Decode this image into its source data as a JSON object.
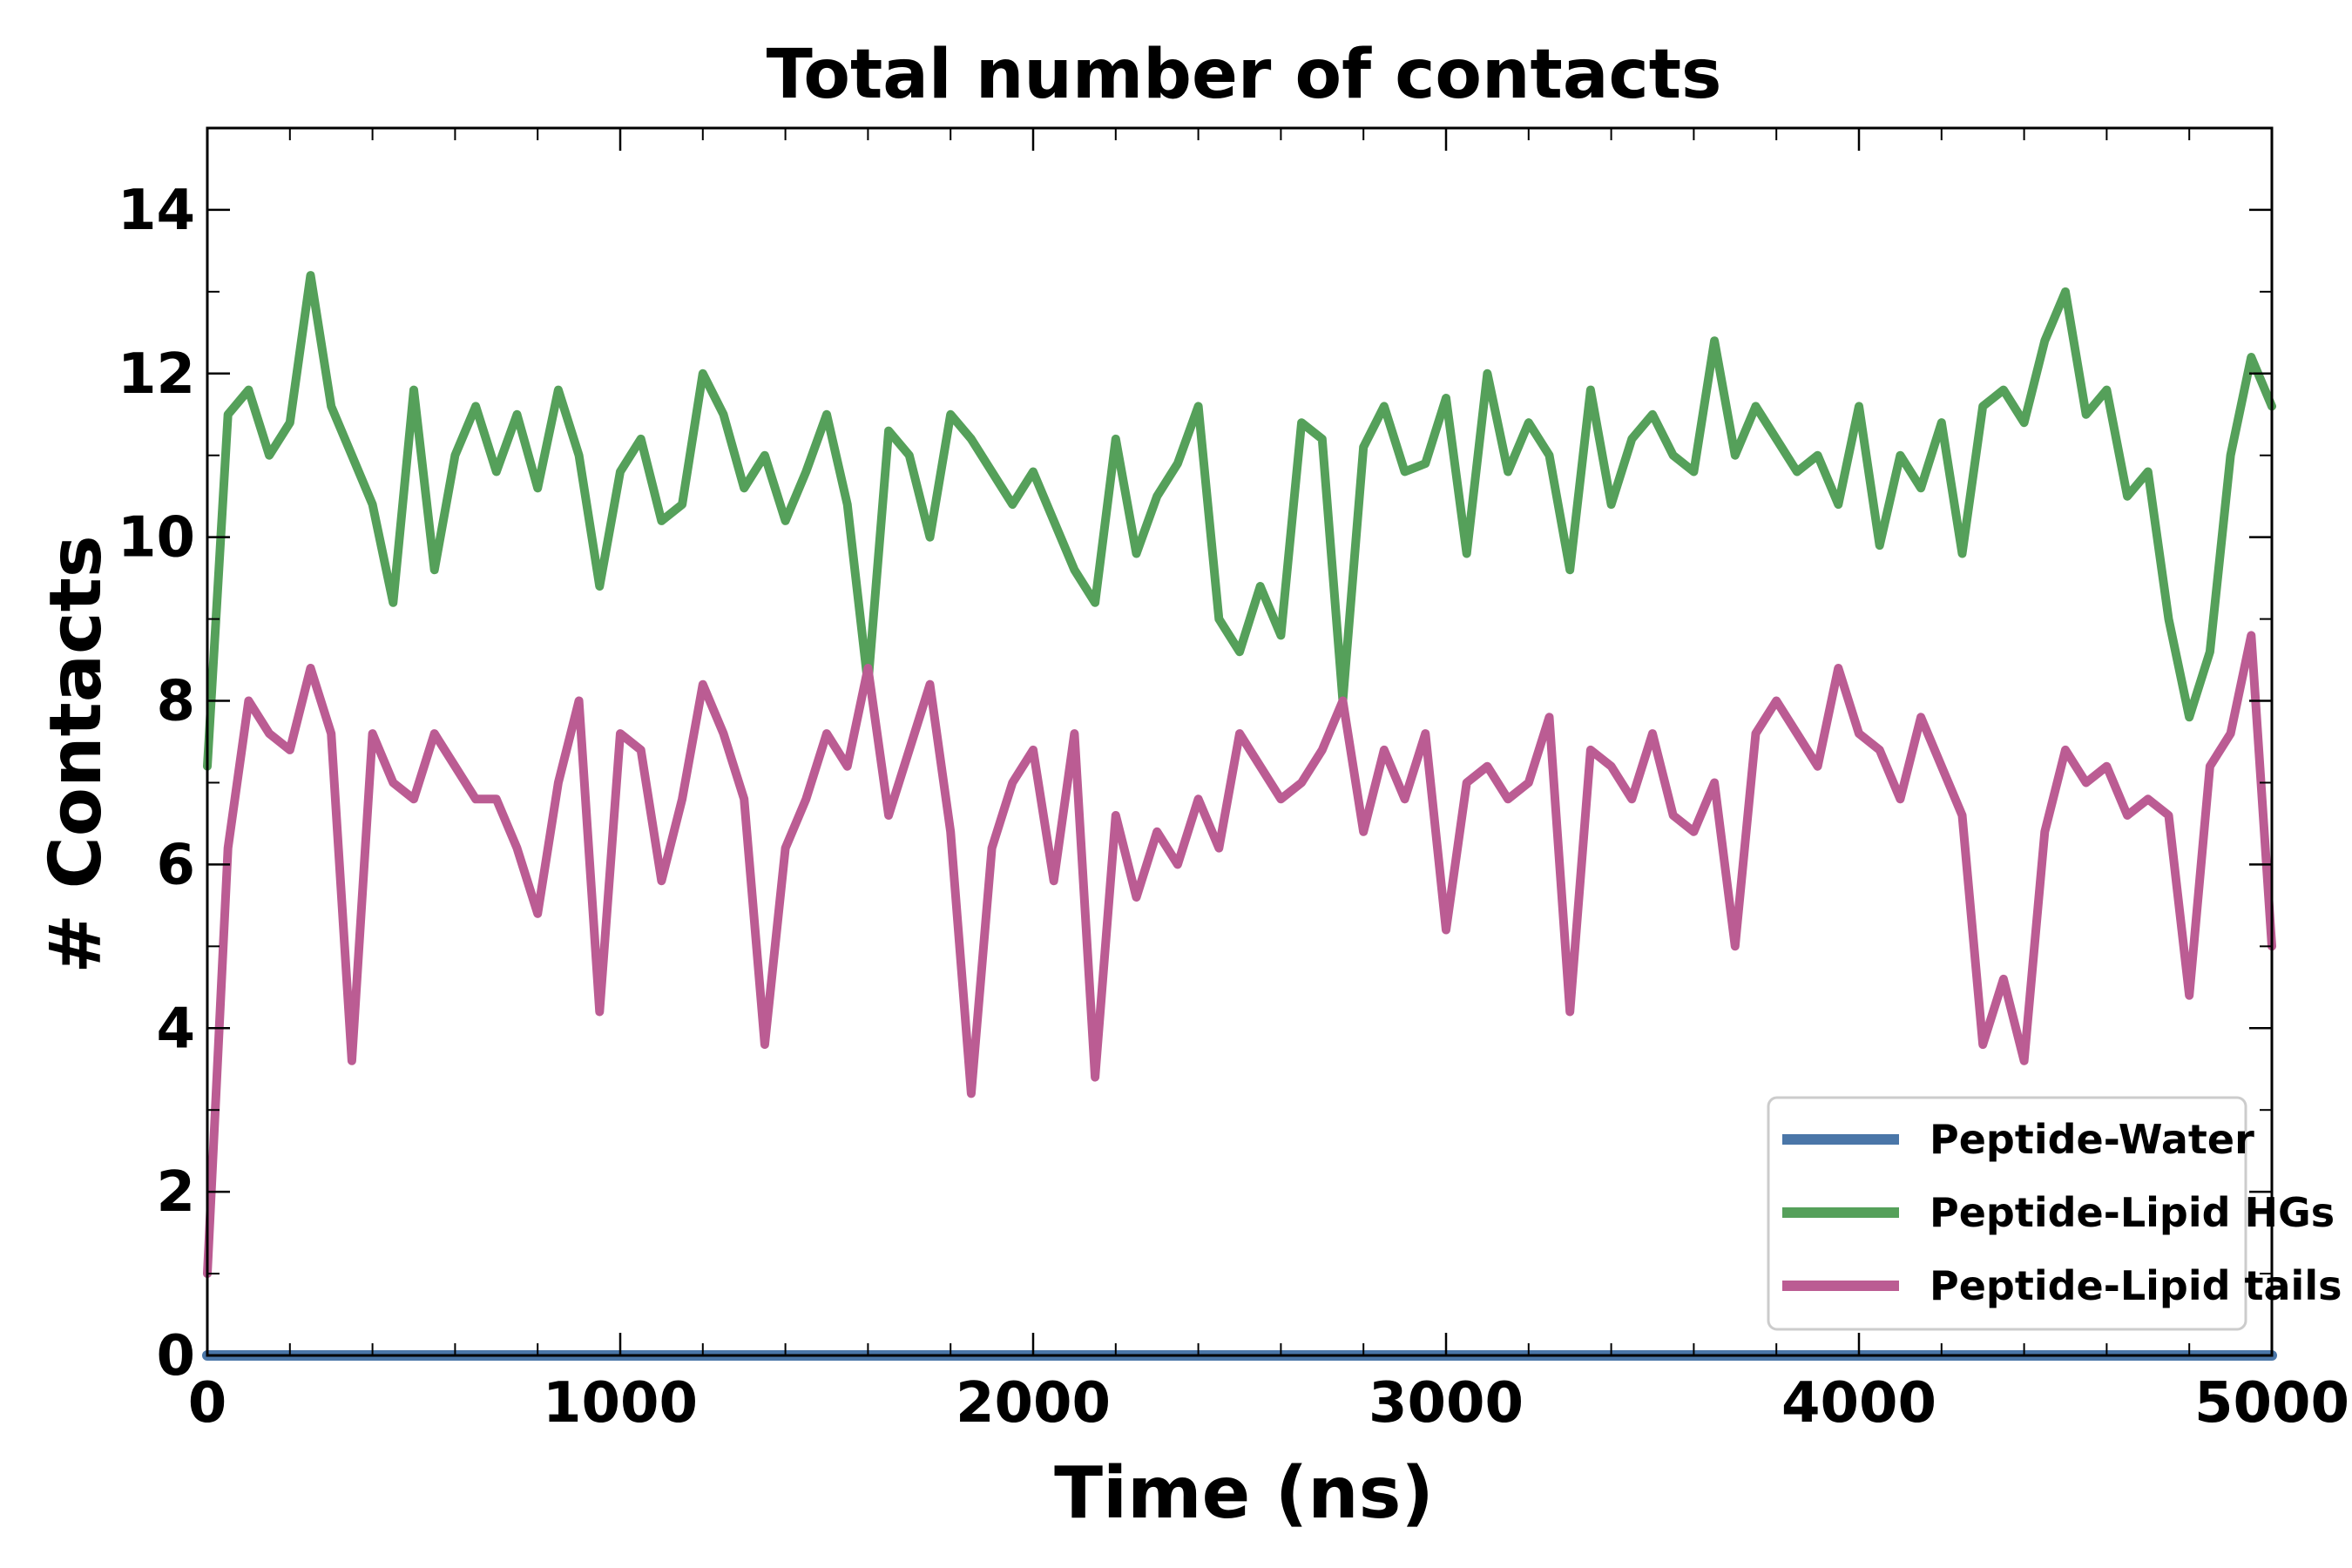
{
  "chart_data": {
    "type": "line",
    "title": "Total number of contacts",
    "xlabel": "Time (ns)",
    "ylabel": "# Contacts",
    "xlim": [
      0,
      5000
    ],
    "ylim": [
      0,
      15
    ],
    "xticks": [
      0,
      1000,
      2000,
      3000,
      4000,
      5000
    ],
    "yticks": [
      0,
      2,
      4,
      6,
      8,
      10,
      12,
      14
    ],
    "xtick_labels": [
      "0",
      "1000",
      "2000",
      "3000",
      "4000",
      "5000"
    ],
    "ytick_labels": [
      "0",
      "2",
      "4",
      "6",
      "8",
      "10",
      "12",
      "14"
    ],
    "grid": false,
    "legend_position": "lower-right",
    "x": [
      0,
      50,
      100,
      150,
      200,
      250,
      300,
      350,
      400,
      450,
      500,
      550,
      600,
      650,
      700,
      750,
      800,
      850,
      900,
      950,
      1000,
      1050,
      1100,
      1150,
      1200,
      1250,
      1300,
      1350,
      1400,
      1450,
      1500,
      1550,
      1600,
      1650,
      1700,
      1750,
      1800,
      1850,
      1900,
      1950,
      2000,
      2050,
      2100,
      2150,
      2200,
      2250,
      2300,
      2350,
      2400,
      2450,
      2500,
      2550,
      2600,
      2650,
      2700,
      2750,
      2800,
      2850,
      2900,
      2950,
      3000,
      3050,
      3100,
      3150,
      3200,
      3250,
      3300,
      3350,
      3400,
      3450,
      3500,
      3550,
      3600,
      3650,
      3700,
      3750,
      3800,
      3850,
      3900,
      3950,
      4000,
      4050,
      4100,
      4150,
      4200,
      4250,
      4300,
      4350,
      4400,
      4450,
      4500,
      4550,
      4600,
      4650,
      4700,
      4750,
      4800,
      4850,
      4900,
      4950,
      5000
    ],
    "series": [
      {
        "name": "Peptide-Water",
        "color": "#4a76a8",
        "values": [
          0,
          0,
          0,
          0,
          0,
          0,
          0,
          0,
          0,
          0,
          0,
          0,
          0,
          0,
          0,
          0,
          0,
          0,
          0,
          0,
          0,
          0,
          0,
          0,
          0,
          0,
          0,
          0,
          0,
          0,
          0,
          0,
          0,
          0,
          0,
          0,
          0,
          0,
          0,
          0,
          0,
          0,
          0,
          0,
          0,
          0,
          0,
          0,
          0,
          0,
          0,
          0,
          0,
          0,
          0,
          0,
          0,
          0,
          0,
          0,
          0,
          0,
          0,
          0,
          0,
          0,
          0,
          0,
          0,
          0,
          0,
          0,
          0,
          0,
          0,
          0,
          0,
          0,
          0,
          0,
          0,
          0,
          0,
          0,
          0,
          0,
          0,
          0,
          0,
          0,
          0,
          0,
          0,
          0,
          0,
          0,
          0,
          0,
          0,
          0,
          0
        ]
      },
      {
        "name": "Peptide-Lipid HGs",
        "color": "#55a05a",
        "values": [
          7.2,
          11.5,
          11.8,
          11.0,
          11.4,
          13.2,
          11.6,
          11.0,
          10.4,
          9.2,
          11.8,
          9.6,
          11.0,
          11.6,
          10.8,
          11.5,
          10.6,
          11.8,
          11.0,
          9.4,
          10.8,
          11.2,
          10.2,
          10.4,
          12.0,
          11.5,
          10.6,
          11.0,
          10.2,
          10.8,
          11.5,
          10.4,
          8.2,
          11.3,
          11.0,
          10.0,
          11.5,
          11.2,
          10.8,
          10.4,
          10.8,
          10.2,
          9.6,
          9.2,
          11.2,
          9.8,
          10.5,
          10.9,
          11.6,
          9.0,
          8.6,
          9.4,
          8.8,
          11.4,
          11.2,
          8.0,
          11.1,
          11.6,
          10.8,
          10.9,
          11.7,
          9.8,
          12.0,
          10.8,
          11.4,
          11.0,
          9.6,
          11.8,
          10.4,
          11.2,
          11.5,
          11.0,
          10.8,
          12.4,
          11.0,
          11.6,
          11.2,
          10.8,
          11.0,
          10.4,
          11.6,
          9.9,
          11.0,
          10.6,
          11.4,
          9.8,
          11.6,
          11.8,
          11.4,
          12.4,
          13.0,
          11.5,
          11.8,
          10.5,
          10.8,
          9.0,
          7.8,
          8.6,
          11.0,
          12.2,
          11.6
        ]
      },
      {
        "name": "Peptide-Lipid tails",
        "color": "#bb5c93",
        "values": [
          1.0,
          6.2,
          8.0,
          7.6,
          7.4,
          8.4,
          7.6,
          3.6,
          7.6,
          7.0,
          6.8,
          7.6,
          7.2,
          6.8,
          6.8,
          6.2,
          5.4,
          7.0,
          8.0,
          4.2,
          7.6,
          7.4,
          5.8,
          6.8,
          8.2,
          7.6,
          6.8,
          3.8,
          6.2,
          6.8,
          7.6,
          7.2,
          8.4,
          6.6,
          7.4,
          8.2,
          6.4,
          3.2,
          6.2,
          7.0,
          7.4,
          5.8,
          7.6,
          3.4,
          6.6,
          5.6,
          6.4,
          6.0,
          6.8,
          6.2,
          7.6,
          7.2,
          6.8,
          7.0,
          7.4,
          8.0,
          6.4,
          7.4,
          6.8,
          7.6,
          5.2,
          7.0,
          7.2,
          6.8,
          7.0,
          7.8,
          4.2,
          7.4,
          7.2,
          6.8,
          7.6,
          6.6,
          6.4,
          7.0,
          5.0,
          7.6,
          8.0,
          7.6,
          7.2,
          8.4,
          7.6,
          7.4,
          6.8,
          7.8,
          7.2,
          6.6,
          3.8,
          4.6,
          3.6,
          6.4,
          7.4,
          7.0,
          7.2,
          6.6,
          6.8,
          6.6,
          4.4,
          7.2,
          7.6,
          8.8,
          5.0
        ]
      }
    ]
  }
}
